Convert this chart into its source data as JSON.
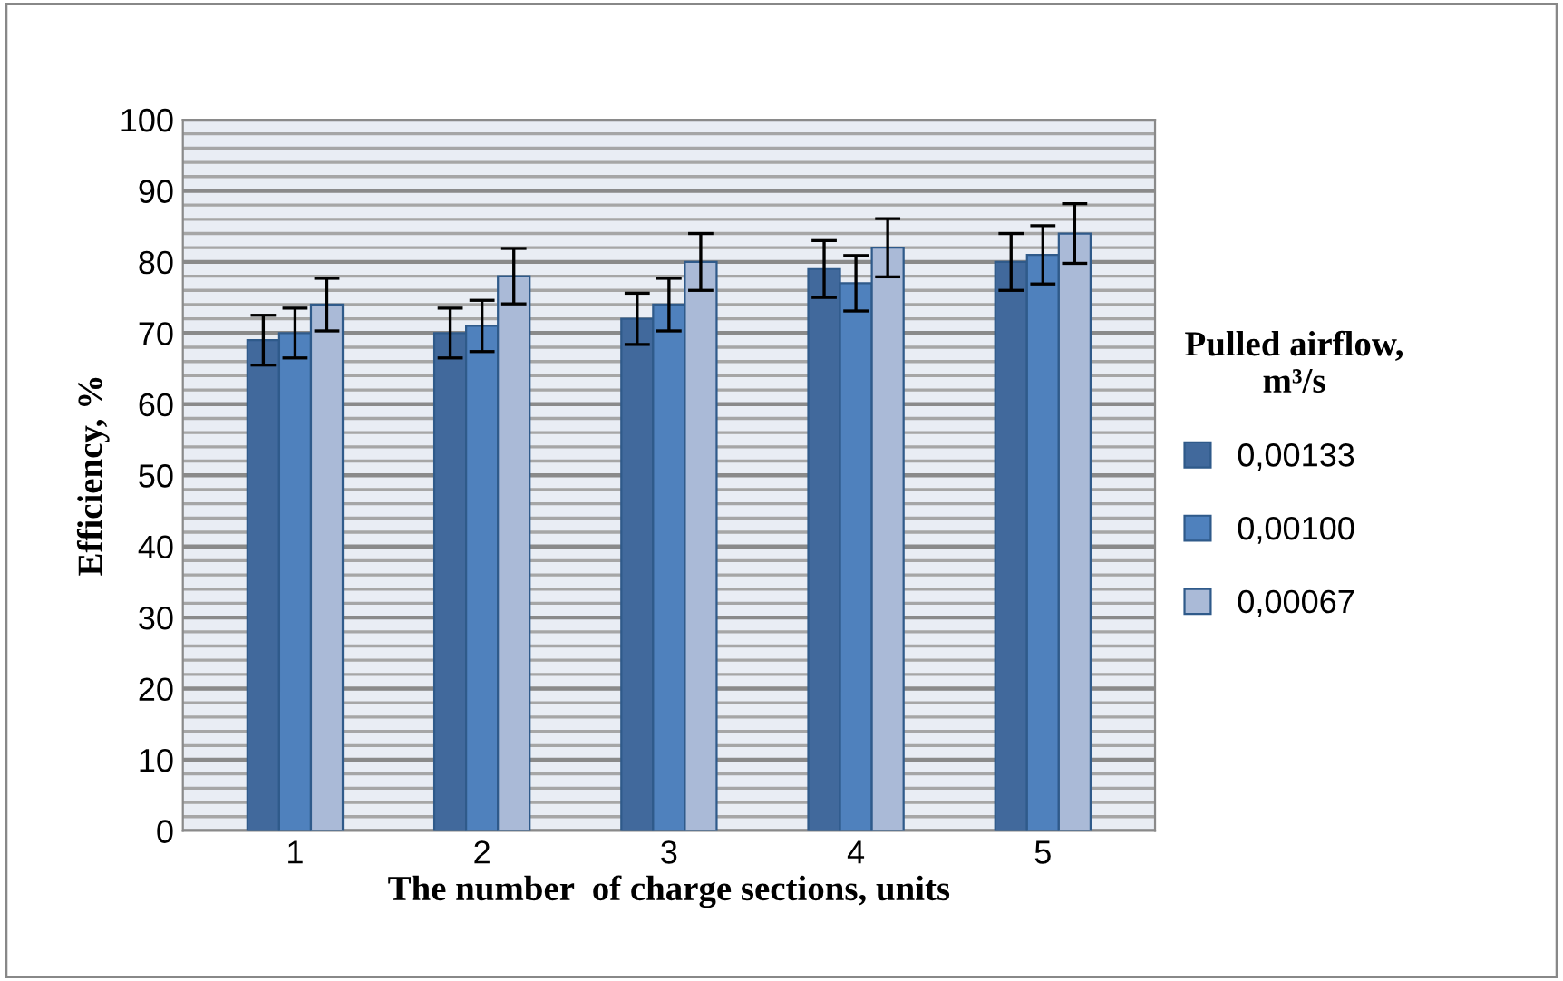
{
  "chart_data": {
    "type": "bar",
    "xlabel": "The number  of charge sections, units",
    "ylabel": "Efficiency, %",
    "legend_title": "Pulled airflow, m³/s",
    "categories": [
      "1",
      "2",
      "3",
      "4",
      "5"
    ],
    "series": [
      {
        "name": "0,00133",
        "color": "#41699c",
        "values": [
          69,
          70,
          72,
          79,
          80
        ],
        "errors": [
          3.5,
          3.5,
          3.6,
          4.0,
          4.0
        ]
      },
      {
        "name": "0,00100",
        "color": "#4f81bd",
        "values": [
          70,
          71,
          74,
          77,
          81
        ],
        "errors": [
          3.5,
          3.6,
          3.7,
          3.9,
          4.1
        ]
      },
      {
        "name": "0,00067",
        "color": "#aabad7",
        "values": [
          74,
          78,
          80,
          82,
          84
        ],
        "errors": [
          3.7,
          3.9,
          4.0,
          4.1,
          4.2
        ]
      }
    ],
    "ylim": [
      0,
      100
    ],
    "yticks": [
      0,
      {
        "value": 2,
        "label": null
      },
      {
        "value": 4,
        "label": null
      },
      {
        "value": 6,
        "label": null
      },
      {
        "value": 8,
        "label": null
      },
      10,
      {
        "value": 12,
        "label": null
      },
      {
        "value": 14,
        "label": null
      },
      {
        "value": 16,
        "label": null
      },
      {
        "value": 18,
        "label": null
      },
      20,
      {
        "value": 22,
        "label": null
      },
      {
        "value": 24,
        "label": null
      },
      {
        "value": 26,
        "label": null
      },
      {
        "value": 28,
        "label": null
      },
      30,
      {
        "value": 32,
        "label": null
      },
      {
        "value": 34,
        "label": null
      },
      {
        "value": 36,
        "label": null
      },
      {
        "value": 38,
        "label": null
      },
      40,
      {
        "value": 42,
        "label": null
      },
      {
        "value": 44,
        "label": null
      },
      {
        "value": 46,
        "label": null
      },
      {
        "value": 48,
        "label": null
      },
      50,
      {
        "value": 52,
        "label": null
      },
      {
        "value": 54,
        "label": null
      },
      {
        "value": 56,
        "label": null
      },
      {
        "value": 58,
        "label": null
      },
      60,
      {
        "value": 62,
        "label": null
      },
      {
        "value": 64,
        "label": null
      },
      {
        "value": 66,
        "label": null
      },
      {
        "value": 68,
        "label": null
      },
      70,
      {
        "value": 72,
        "label": null
      },
      {
        "value": 74,
        "label": null
      },
      {
        "value": 76,
        "label": null
      },
      {
        "value": 78,
        "label": null
      },
      80,
      {
        "value": 82,
        "label": null
      },
      {
        "value": 84,
        "label": null
      },
      {
        "value": 86,
        "label": null
      },
      {
        "value": 88,
        "label": null
      },
      90,
      {
        "value": 92,
        "label": null
      },
      {
        "value": 94,
        "label": null
      },
      {
        "value": 96,
        "label": null
      },
      {
        "value": 98,
        "label": null
      },
      100
    ],
    "grid": "y",
    "legend": "right"
  }
}
